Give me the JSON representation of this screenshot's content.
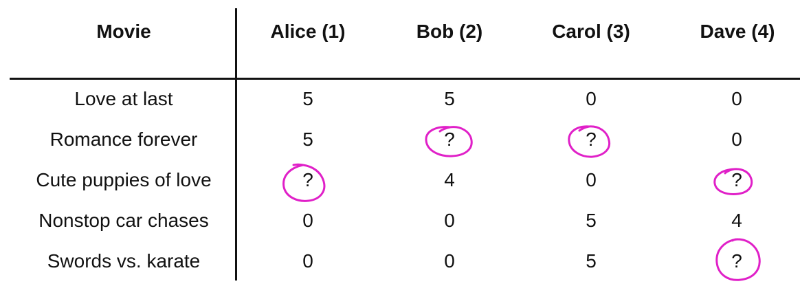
{
  "table": {
    "headers": [
      "Movie",
      "Alice (1)",
      "Bob (2)",
      "Carol (3)",
      "Dave (4)"
    ],
    "rows": [
      [
        "Love at last",
        "5",
        "5",
        "0",
        "0"
      ],
      [
        "Romance forever",
        "5",
        "?",
        "?",
        "0"
      ],
      [
        "Cute puppies of love",
        "?",
        "4",
        "0",
        "?"
      ],
      [
        "Nonstop car chases",
        "0",
        "0",
        "5",
        "4"
      ],
      [
        "Swords vs. karate",
        "0",
        "0",
        "5",
        "?"
      ]
    ]
  },
  "annotation": {
    "color": "#e020c8",
    "marked_cells": "missing ratings circled"
  }
}
